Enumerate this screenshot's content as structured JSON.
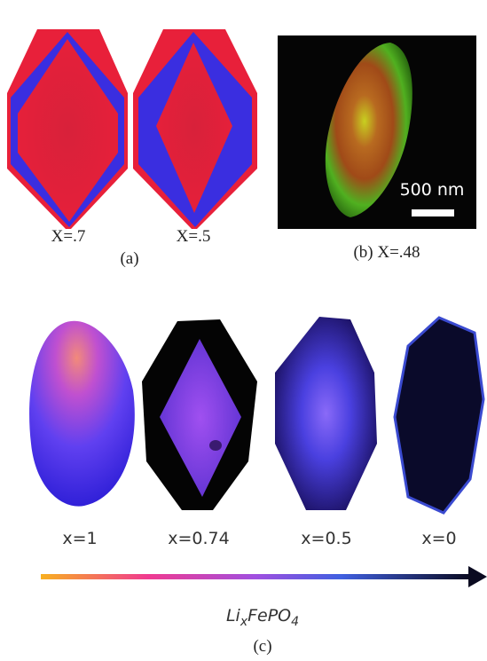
{
  "panel_a": {
    "labels": [
      "X=.7",
      "X=.5"
    ],
    "caption": "(a)"
  },
  "panel_b": {
    "scale": "500 nm",
    "caption": "(b) X=.48"
  },
  "panel_c": {
    "labels": [
      "x=1",
      "x=0.74",
      "x=0.5",
      "x=0"
    ],
    "formula": {
      "base": "Li",
      "sub1": "x",
      "mid": "FePO",
      "sub2": "4"
    },
    "caption": "(c)"
  }
}
